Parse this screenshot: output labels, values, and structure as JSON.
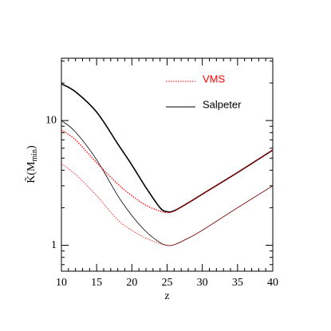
{
  "chart_data": {
    "type": "line",
    "x_label": "z",
    "y_label": [
      "K̃(M",
      "min",
      ")"
    ],
    "x": [
      10,
      12,
      15,
      18,
      20,
      22,
      24,
      25,
      26,
      28,
      30,
      35,
      40
    ],
    "series": [
      {
        "color": "#000000",
        "width": 1.6,
        "dashed": false,
        "values": [
          19.7,
          17,
          11.7,
          6.5,
          4.4,
          2.9,
          2.0,
          1.86,
          1.89,
          2.19,
          2.57,
          3.83,
          5.8
        ]
      },
      {
        "color": "#000000",
        "width": 0.8,
        "dashed": false,
        "values": [
          10,
          8.1,
          4.85,
          2.5,
          1.73,
          1.29,
          1.05,
          1.0,
          1.01,
          1.14,
          1.32,
          2.0,
          3.0
        ]
      },
      {
        "color": "#ff0000",
        "width": 1.3,
        "dashed": true,
        "values": [
          8.4,
          7.0,
          4.6,
          3.1,
          2.5,
          2.09,
          1.88,
          1.83,
          1.88,
          2.19,
          2.57,
          3.83,
          5.8
        ]
      },
      {
        "color": "#ff0000",
        "width": 0.8,
        "dashed": true,
        "values": [
          4.5,
          3.7,
          2.5,
          1.6,
          1.32,
          1.14,
          1.03,
          1.0,
          1.01,
          1.14,
          1.32,
          2.0,
          3.0
        ]
      }
    ],
    "legend": [
      {
        "name": "VMS",
        "color": "#ff0000",
        "dashed": true
      },
      {
        "name": "Salpeter",
        "color": "#000000",
        "dashed": false
      }
    ],
    "xlim": [
      10,
      40
    ],
    "xticks": [
      10,
      15,
      20,
      25,
      30,
      35,
      40
    ],
    "xminorticks": [
      11,
      12,
      13,
      14,
      16,
      17,
      18,
      19,
      21,
      22,
      23,
      24,
      26,
      27,
      28,
      29,
      31,
      32,
      33,
      34,
      36,
      37,
      38,
      39
    ],
    "ylim": [
      0.62,
      31.6
    ],
    "yticks": [
      1,
      10
    ],
    "yminorticks": [
      0.7,
      0.8,
      0.9,
      2,
      3,
      4,
      5,
      6,
      7,
      8,
      9,
      20,
      30
    ],
    "log_y": true
  }
}
